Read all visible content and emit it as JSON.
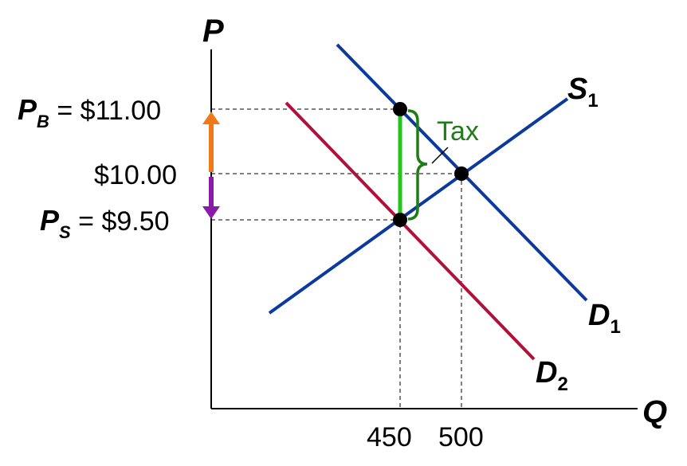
{
  "axes": {
    "y_title": "P",
    "x_title": "Q"
  },
  "price_labels": {
    "buyer": {
      "var": "P",
      "sub": "B",
      "text": " = $11.00"
    },
    "equilibrium": {
      "text": "$10.00"
    },
    "seller": {
      "var": "P",
      "sub": "S",
      "text": " = $9.50"
    }
  },
  "quantity_labels": {
    "q_tax": "450",
    "q_eq": "500"
  },
  "curves": {
    "supply": {
      "name": "S",
      "sub": "1",
      "color": "#0b3a9c"
    },
    "demand_original": {
      "name": "D",
      "sub": "1",
      "color": "#0b3a9c"
    },
    "demand_shifted": {
      "name": "D",
      "sub": "2",
      "color": "#b0103a"
    }
  },
  "tax": {
    "label": "Tax",
    "wedge_color": "#22c41e",
    "brace_color": "#1e7d16"
  },
  "arrows": {
    "buyer_burden_color": "#f07a1a",
    "seller_burden_color": "#8a1aa8"
  },
  "values": {
    "price_buyer": 11.0,
    "price_equilibrium": 10.0,
    "price_seller": 9.5,
    "quantity_with_tax": 450,
    "quantity_equilibrium": 500
  }
}
